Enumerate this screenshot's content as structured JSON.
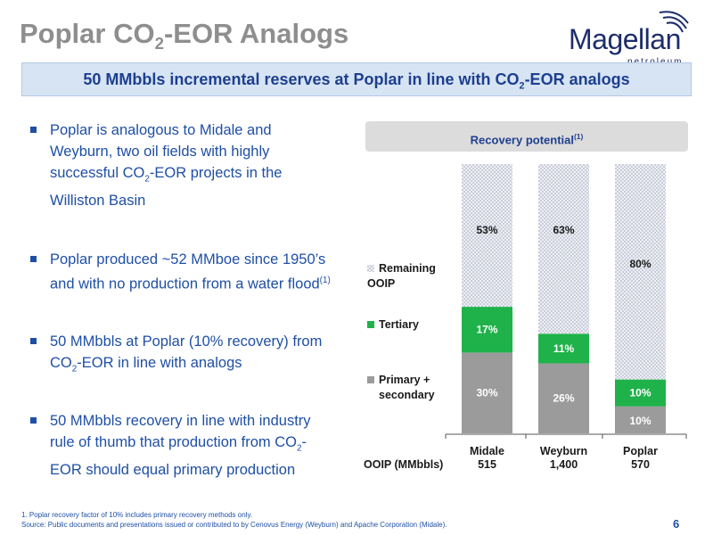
{
  "slide": {
    "title_pre": "Poplar CO",
    "title_sub": "2",
    "title_post": "-EOR Analogs",
    "page_number": "6"
  },
  "logo": {
    "word": "Magellan",
    "sub": "petroleum",
    "color": "#1d2d6b"
  },
  "banner": {
    "pre": "50 MMbbls incremental reserves at Poplar in line with CO",
    "sub": "2",
    "post": "-EOR analogs"
  },
  "bullets": [
    {
      "pre": "Poplar is analogous to Midale and Weyburn, two oil fields with highly successful CO",
      "sub": "2",
      "post": "-EOR projects in the Williston Basin",
      "sup": ""
    },
    {
      "pre": "Poplar produced ~52 MMboe since 1950’s and with no production from a water flood",
      "sub": "",
      "post": "",
      "sup": "(1)"
    },
    {
      "pre": "50 MMbbls at Poplar (10% recovery) from CO",
      "sub": "2",
      "post": "-EOR in line with analogs",
      "sup": ""
    },
    {
      "pre": "50 MMbbls recovery in line with industry rule of thumb that production from CO",
      "sub": "2",
      "post": "-EOR should equal primary production",
      "sup": ""
    }
  ],
  "chart_data": {
    "type": "bar",
    "stacked": true,
    "title": "Recovery potential",
    "title_sup": "(1)",
    "categories": [
      "Midale",
      "Weyburn",
      "Poplar"
    ],
    "category_values": [
      "515",
      "1,400",
      "570"
    ],
    "row_label": "OOIP (MMbbls)",
    "ylim": [
      0,
      100
    ],
    "legend_position": "left",
    "grid": false,
    "series": [
      {
        "name": "Primary + secondary",
        "values": [
          30,
          26,
          10
        ],
        "labels": [
          "30%",
          "26%",
          "10%"
        ],
        "color": "#9b9b9b"
      },
      {
        "name": "Tertiary",
        "values": [
          17,
          11,
          10
        ],
        "labels": [
          "17%",
          "11%",
          "10%"
        ],
        "color": "#1fb24a"
      },
      {
        "name": "Remaining OOIP",
        "values": [
          53,
          63,
          80
        ],
        "labels": [
          "53%",
          "63%",
          "80%"
        ],
        "color": "#c9cdd8"
      }
    ],
    "legend": [
      {
        "line1": "Remaining",
        "line2": "OOIP"
      },
      {
        "line1": "Tertiary",
        "line2": ""
      },
      {
        "line1": "Primary +",
        "line2": "secondary"
      }
    ]
  },
  "footnotes": {
    "line1": "1. Poplar recovery factor of 10% includes primary recovery methods only.",
    "line2": "Source: Public documents and presentations issued or contributed to by Cenovus Energy (Weyburn) and Apache Corporation (Midale)."
  }
}
